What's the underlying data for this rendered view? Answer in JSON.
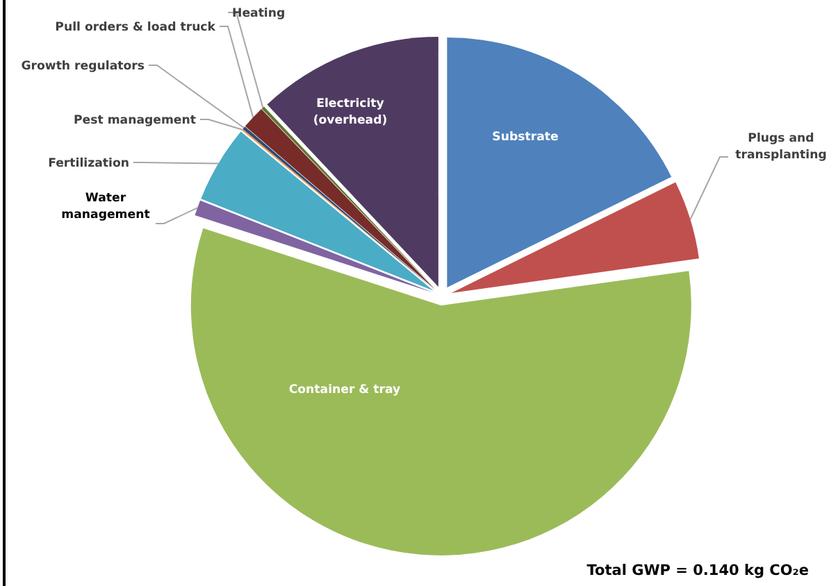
{
  "chart_data": {
    "type": "pie",
    "categories": [
      "Substrate",
      "Plugs and transplanting",
      "Container & tray",
      "Water management",
      "Fertilization",
      "Pest management",
      "Growth regulators",
      "Pull orders & load truck",
      "Heating",
      "Electricity (overhead)"
    ],
    "values": [
      17.7,
      5.1,
      57.2,
      1,
      5,
      0.1,
      0.2,
      1.5,
      0.2,
      12
    ],
    "colors": [
      "#4f81bd",
      "#c0504d",
      "#9bbb59",
      "#8064a2",
      "#4bacc6",
      "#f79646",
      "#2c4d75",
      "#772c2a",
      "#5f7530",
      "#4f3b62"
    ],
    "annotations": [
      "Total GWP = 0.140 kg CO₂e"
    ]
  }
}
